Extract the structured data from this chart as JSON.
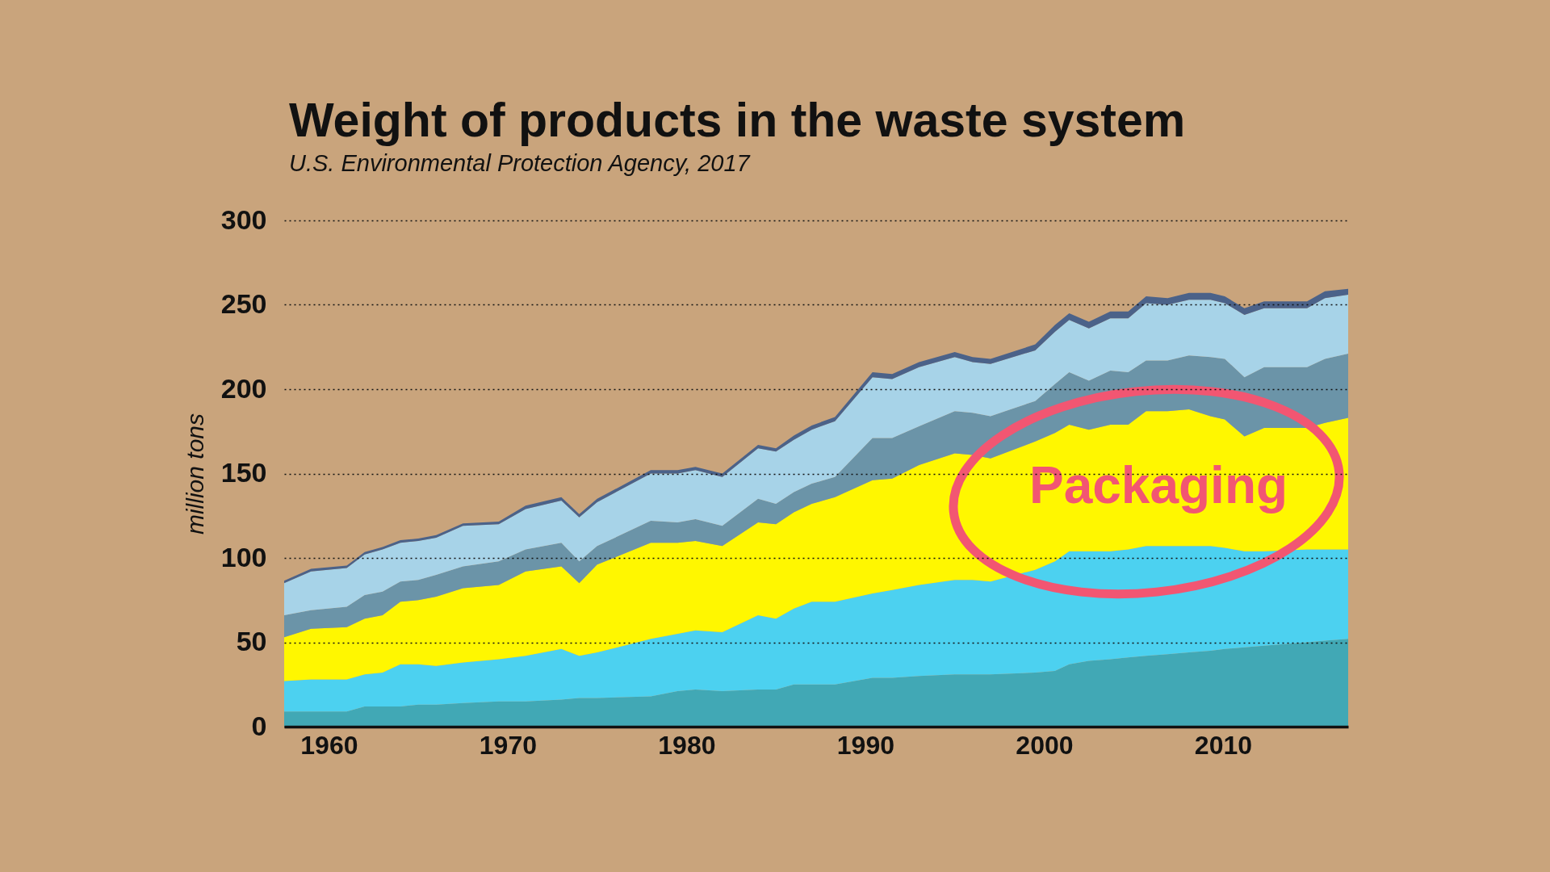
{
  "chart_data": {
    "type": "area",
    "title": "Weight of products in the waste system",
    "subtitle": "U.S. Environmental Protection Agency, 2017",
    "ylabel": "million tons",
    "x": [
      1957.5,
      1959,
      1961,
      1962,
      1963,
      1964,
      1965,
      1966,
      1967.5,
      1969.5,
      1971,
      1973,
      1974,
      1975,
      1978,
      1979.5,
      1980.5,
      1982,
      1984,
      1985,
      1986,
      1987,
      1988.3,
      1990.4,
      1991.5,
      1993,
      1995,
      1996,
      1997,
      1999.5,
      2000.6,
      2001.4,
      2002.5,
      2003.7,
      2004.7,
      2005.7,
      2006.9,
      2008.1,
      2009.3,
      2010.1,
      2011.2,
      2012.3,
      2014.7,
      2015.7,
      2017
    ],
    "xlim": [
      1957.5,
      2017
    ],
    "xticks": [
      1960,
      1970,
      1980,
      1990,
      2000,
      2010
    ],
    "ylim": [
      0,
      300
    ],
    "yticks": [
      0,
      50,
      100,
      150,
      200,
      250,
      300
    ],
    "stacked": true,
    "grid": "y",
    "series": [
      {
        "color": "#41a8b5",
        "values": [
          9,
          9,
          9,
          12,
          12,
          12,
          13,
          13,
          14,
          15,
          15,
          16,
          17,
          17,
          18,
          21,
          22,
          21,
          22,
          22,
          25,
          25,
          25,
          29,
          29,
          30,
          31,
          31,
          31,
          32,
          33,
          37,
          39,
          40,
          41,
          42,
          43,
          44,
          45,
          46,
          47,
          48,
          50,
          51,
          52
        ]
      },
      {
        "color": "#4cd1f0",
        "values": [
          18,
          19,
          19,
          19,
          20,
          25,
          24,
          23,
          24,
          25,
          27,
          30,
          25,
          27,
          34,
          34,
          35,
          35,
          44,
          42,
          45,
          49,
          49,
          50,
          52,
          54,
          56,
          56,
          55,
          61,
          65,
          67,
          65,
          64,
          64,
          65,
          64,
          63,
          62,
          60,
          57,
          56,
          55,
          54,
          53
        ]
      },
      {
        "color": "#fff700",
        "values": [
          26,
          30,
          31,
          33,
          34,
          37,
          38,
          41,
          44,
          44,
          50,
          49,
          43,
          52,
          57,
          54,
          53,
          51,
          55,
          56,
          57,
          58,
          62,
          67,
          66,
          71,
          75,
          74,
          73,
          76,
          76,
          75,
          72,
          75,
          74,
          80,
          80,
          81,
          77,
          76,
          68,
          73,
          72,
          75,
          78
        ]
      },
      {
        "color": "#6b94a8",
        "values": [
          13,
          11,
          12,
          14,
          14,
          12,
          12,
          13,
          13,
          14,
          13,
          14,
          13,
          11,
          13,
          12,
          13,
          12,
          14,
          12,
          12,
          12,
          12,
          25,
          24,
          23,
          25,
          25,
          25,
          24,
          29,
          31,
          29,
          32,
          31,
          30,
          30,
          32,
          35,
          36,
          35,
          36,
          36,
          38,
          38
        ]
      },
      {
        "color": "#a7d3e8",
        "values": [
          19,
          23,
          23,
          24,
          25,
          23,
          23,
          22,
          24,
          22,
          24,
          25,
          26,
          26,
          28,
          29,
          29,
          29,
          30,
          31,
          31,
          32,
          33,
          36,
          35,
          35,
          32,
          30,
          31,
          30,
          31,
          31,
          31,
          31,
          32,
          34,
          33,
          33,
          34,
          33,
          37,
          35,
          35,
          36,
          35
        ]
      },
      {
        "color": "#4b6289",
        "values": [
          1.5,
          1.5,
          1.5,
          1.5,
          1.5,
          1.5,
          1.5,
          1.5,
          1.5,
          1.5,
          2,
          2,
          2,
          2,
          2,
          2,
          2,
          2,
          2,
          2,
          2.5,
          2.5,
          2.5,
          3,
          3,
          3,
          3,
          3,
          3,
          3.5,
          4,
          4,
          4,
          4,
          4,
          4,
          4,
          4,
          4,
          4,
          4,
          4,
          4,
          4,
          3.5
        ]
      }
    ],
    "annotations": [
      "Packaging"
    ]
  }
}
